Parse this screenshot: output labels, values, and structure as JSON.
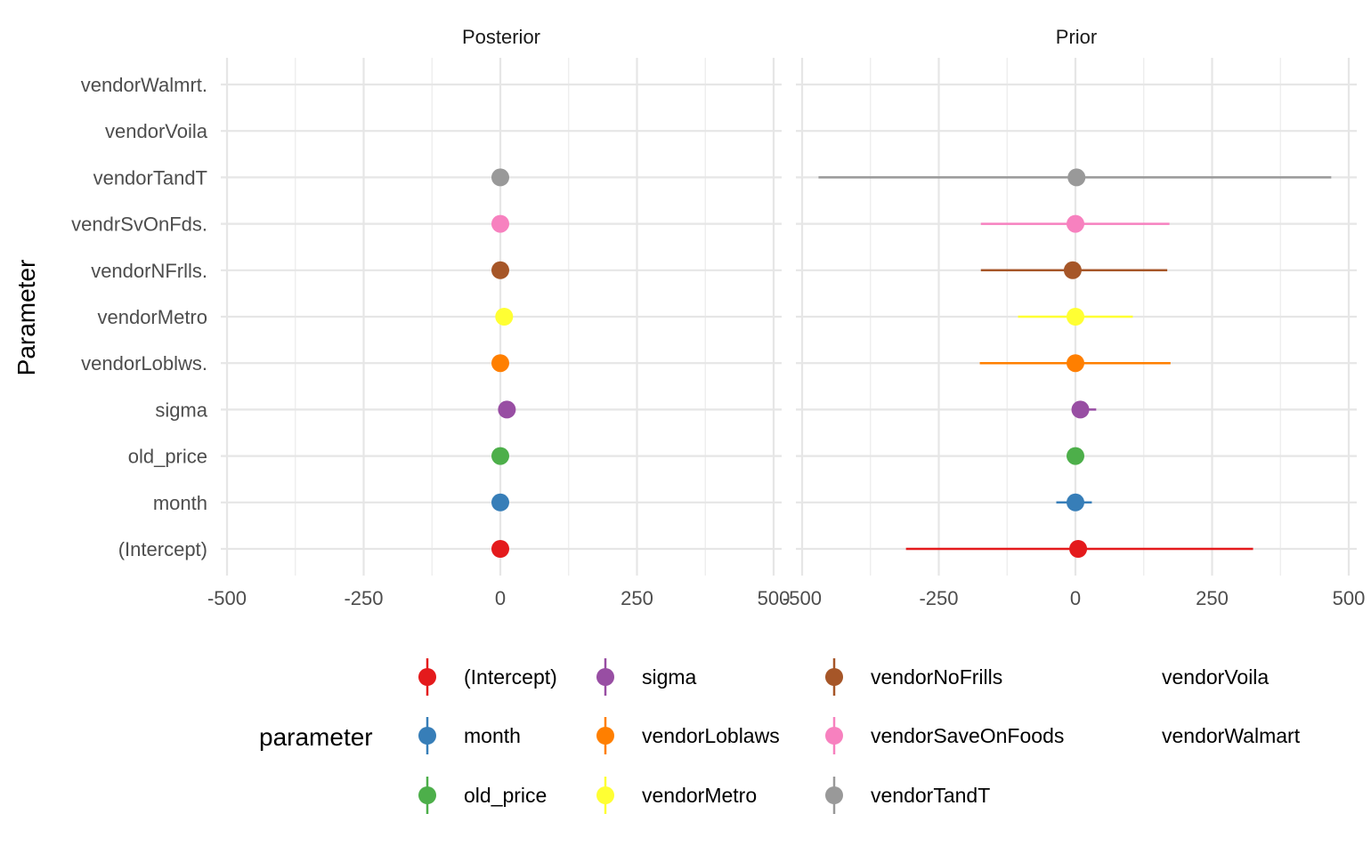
{
  "chart_data": {
    "type": "scatter",
    "ylabel": "Parameter",
    "categories": [
      "(Intercept)",
      "month",
      "old_price",
      "sigma",
      "vendorLoblws.",
      "vendorMetro",
      "vendorNFrlls.",
      "vendrSvOnFds.",
      "vendorTandT",
      "vendorVoila",
      "vendorWalmrt."
    ],
    "x_ticks": [
      "-500",
      "-250",
      "0",
      "250",
      "500"
    ],
    "xlim": [
      -500,
      500
    ],
    "grid": true,
    "legend_position": "bottom",
    "panels": [
      {
        "title": "Posterior",
        "points": [
          {
            "parameter": "(Intercept)",
            "estimate": 0,
            "low": 0,
            "high": 0
          },
          {
            "parameter": "month",
            "estimate": 0,
            "low": 0,
            "high": 0
          },
          {
            "parameter": "old_price",
            "estimate": 0,
            "low": 0,
            "high": 0
          },
          {
            "parameter": "sigma",
            "estimate": 12,
            "low": 12,
            "high": 12
          },
          {
            "parameter": "vendorLoblws.",
            "estimate": 0,
            "low": 0,
            "high": 0
          },
          {
            "parameter": "vendorMetro",
            "estimate": 7,
            "low": 7,
            "high": 7
          },
          {
            "parameter": "vendorNFrlls.",
            "estimate": 0,
            "low": 0,
            "high": 0
          },
          {
            "parameter": "vendrSvOnFds.",
            "estimate": 0,
            "low": 0,
            "high": 0
          },
          {
            "parameter": "vendorTandT",
            "estimate": 0,
            "low": 0,
            "high": 0
          }
        ]
      },
      {
        "title": "Prior",
        "points": [
          {
            "parameter": "(Intercept)",
            "estimate": 5,
            "low": -310,
            "high": 325
          },
          {
            "parameter": "month",
            "estimate": 0,
            "low": -35,
            "high": 30
          },
          {
            "parameter": "old_price",
            "estimate": 0,
            "low": 0,
            "high": 0
          },
          {
            "parameter": "sigma",
            "estimate": 9,
            "low": 0,
            "high": 38
          },
          {
            "parameter": "vendorLoblws.",
            "estimate": 0,
            "low": -175,
            "high": 174
          },
          {
            "parameter": "vendorMetro",
            "estimate": 0,
            "low": -105,
            "high": 105
          },
          {
            "parameter": "vendorNFrlls.",
            "estimate": -5,
            "low": -173,
            "high": 168
          },
          {
            "parameter": "vendrSvOnFds.",
            "estimate": 0,
            "low": -173,
            "high": 172
          },
          {
            "parameter": "vendorTandT",
            "estimate": 2,
            "low": -470,
            "high": 468
          }
        ]
      }
    ],
    "legend": {
      "title": "parameter",
      "entries": [
        {
          "label": "(Intercept)",
          "color": "#E41A1C",
          "key": "(Intercept)"
        },
        {
          "label": "month",
          "color": "#377EB8",
          "key": "month"
        },
        {
          "label": "old_price",
          "color": "#4DAF4A",
          "key": "old_price"
        },
        {
          "label": "sigma",
          "color": "#984EA3",
          "key": "sigma"
        },
        {
          "label": "vendorLoblaws",
          "color": "#FF7F00",
          "key": "vendorLoblws."
        },
        {
          "label": "vendorMetro",
          "color": "#FFFF33",
          "key": "vendorMetro"
        },
        {
          "label": "vendorNoFrills",
          "color": "#A65628",
          "key": "vendorNFrlls."
        },
        {
          "label": "vendorSaveOnFoods",
          "color": "#F781BF",
          "key": "vendrSvOnFds."
        },
        {
          "label": "vendorTandT",
          "color": "#999999",
          "key": "vendorTandT"
        },
        {
          "label": "vendorVoila",
          "color": null,
          "key": "vendorVoila"
        },
        {
          "label": "vendorWalmart",
          "color": null,
          "key": "vendorWalmrt."
        }
      ]
    }
  }
}
